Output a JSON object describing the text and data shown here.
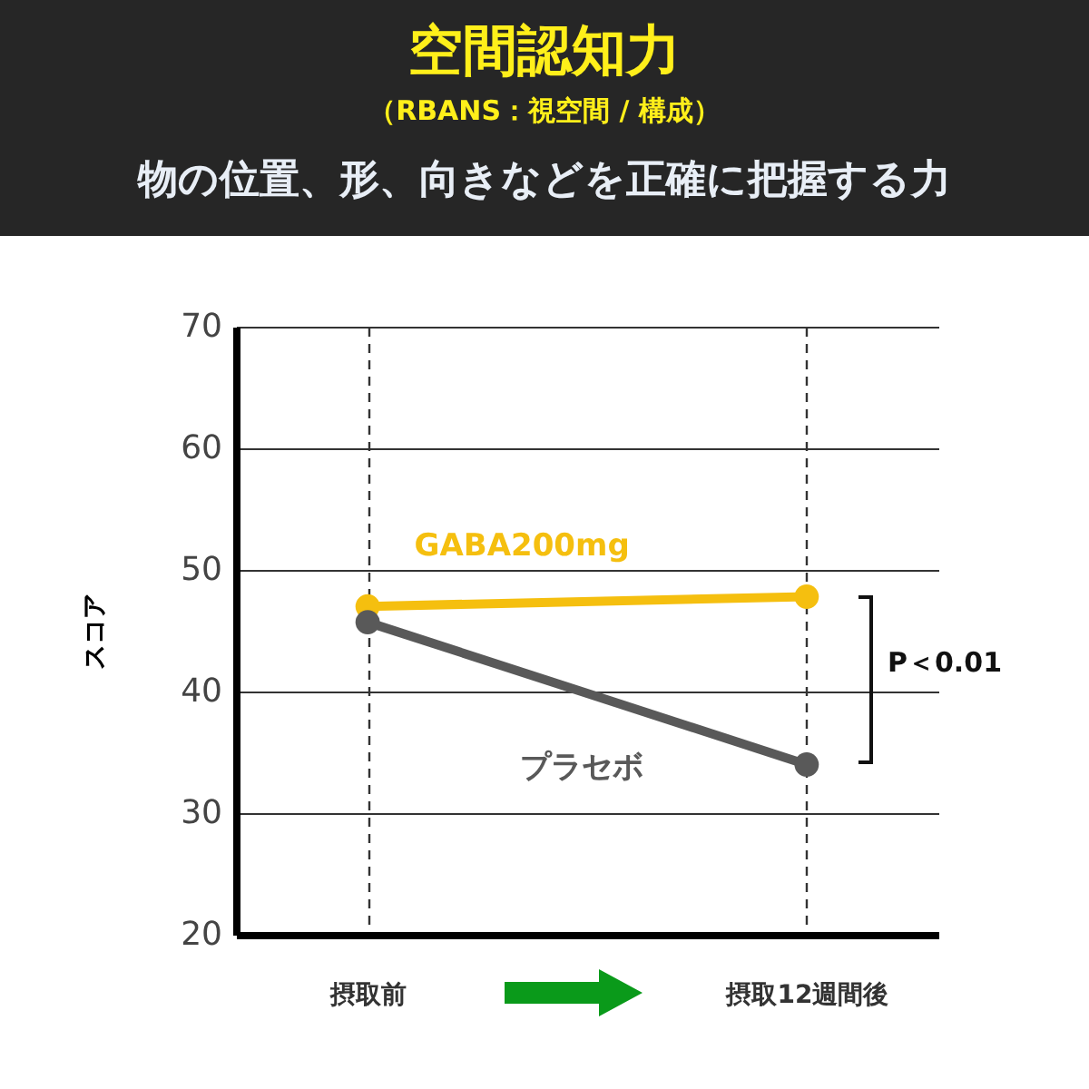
{
  "chart_data": {
    "type": "line",
    "title": "空間認知力",
    "subtitle": "（RBANS：視空間 / 構成）",
    "annotations": [
      "物の位置、形、向きなどを正確に把握する力",
      "P＜0.01"
    ],
    "ylabel": "スコア",
    "categories": [
      "摂取前",
      "摂取12週間後"
    ],
    "series": [
      {
        "name": "GABA200mg",
        "color": "#f5bf0f",
        "values": [
          47.0,
          47.8
        ]
      },
      {
        "name": "プラセボ",
        "color": "#595959",
        "values": [
          45.7,
          34.0
        ]
      }
    ],
    "ylim": [
      20,
      70
    ],
    "yticks": [
      20,
      30,
      40,
      50,
      60,
      70
    ],
    "grid": true,
    "legend": false,
    "marker": "circle",
    "line_style": "solid"
  }
}
